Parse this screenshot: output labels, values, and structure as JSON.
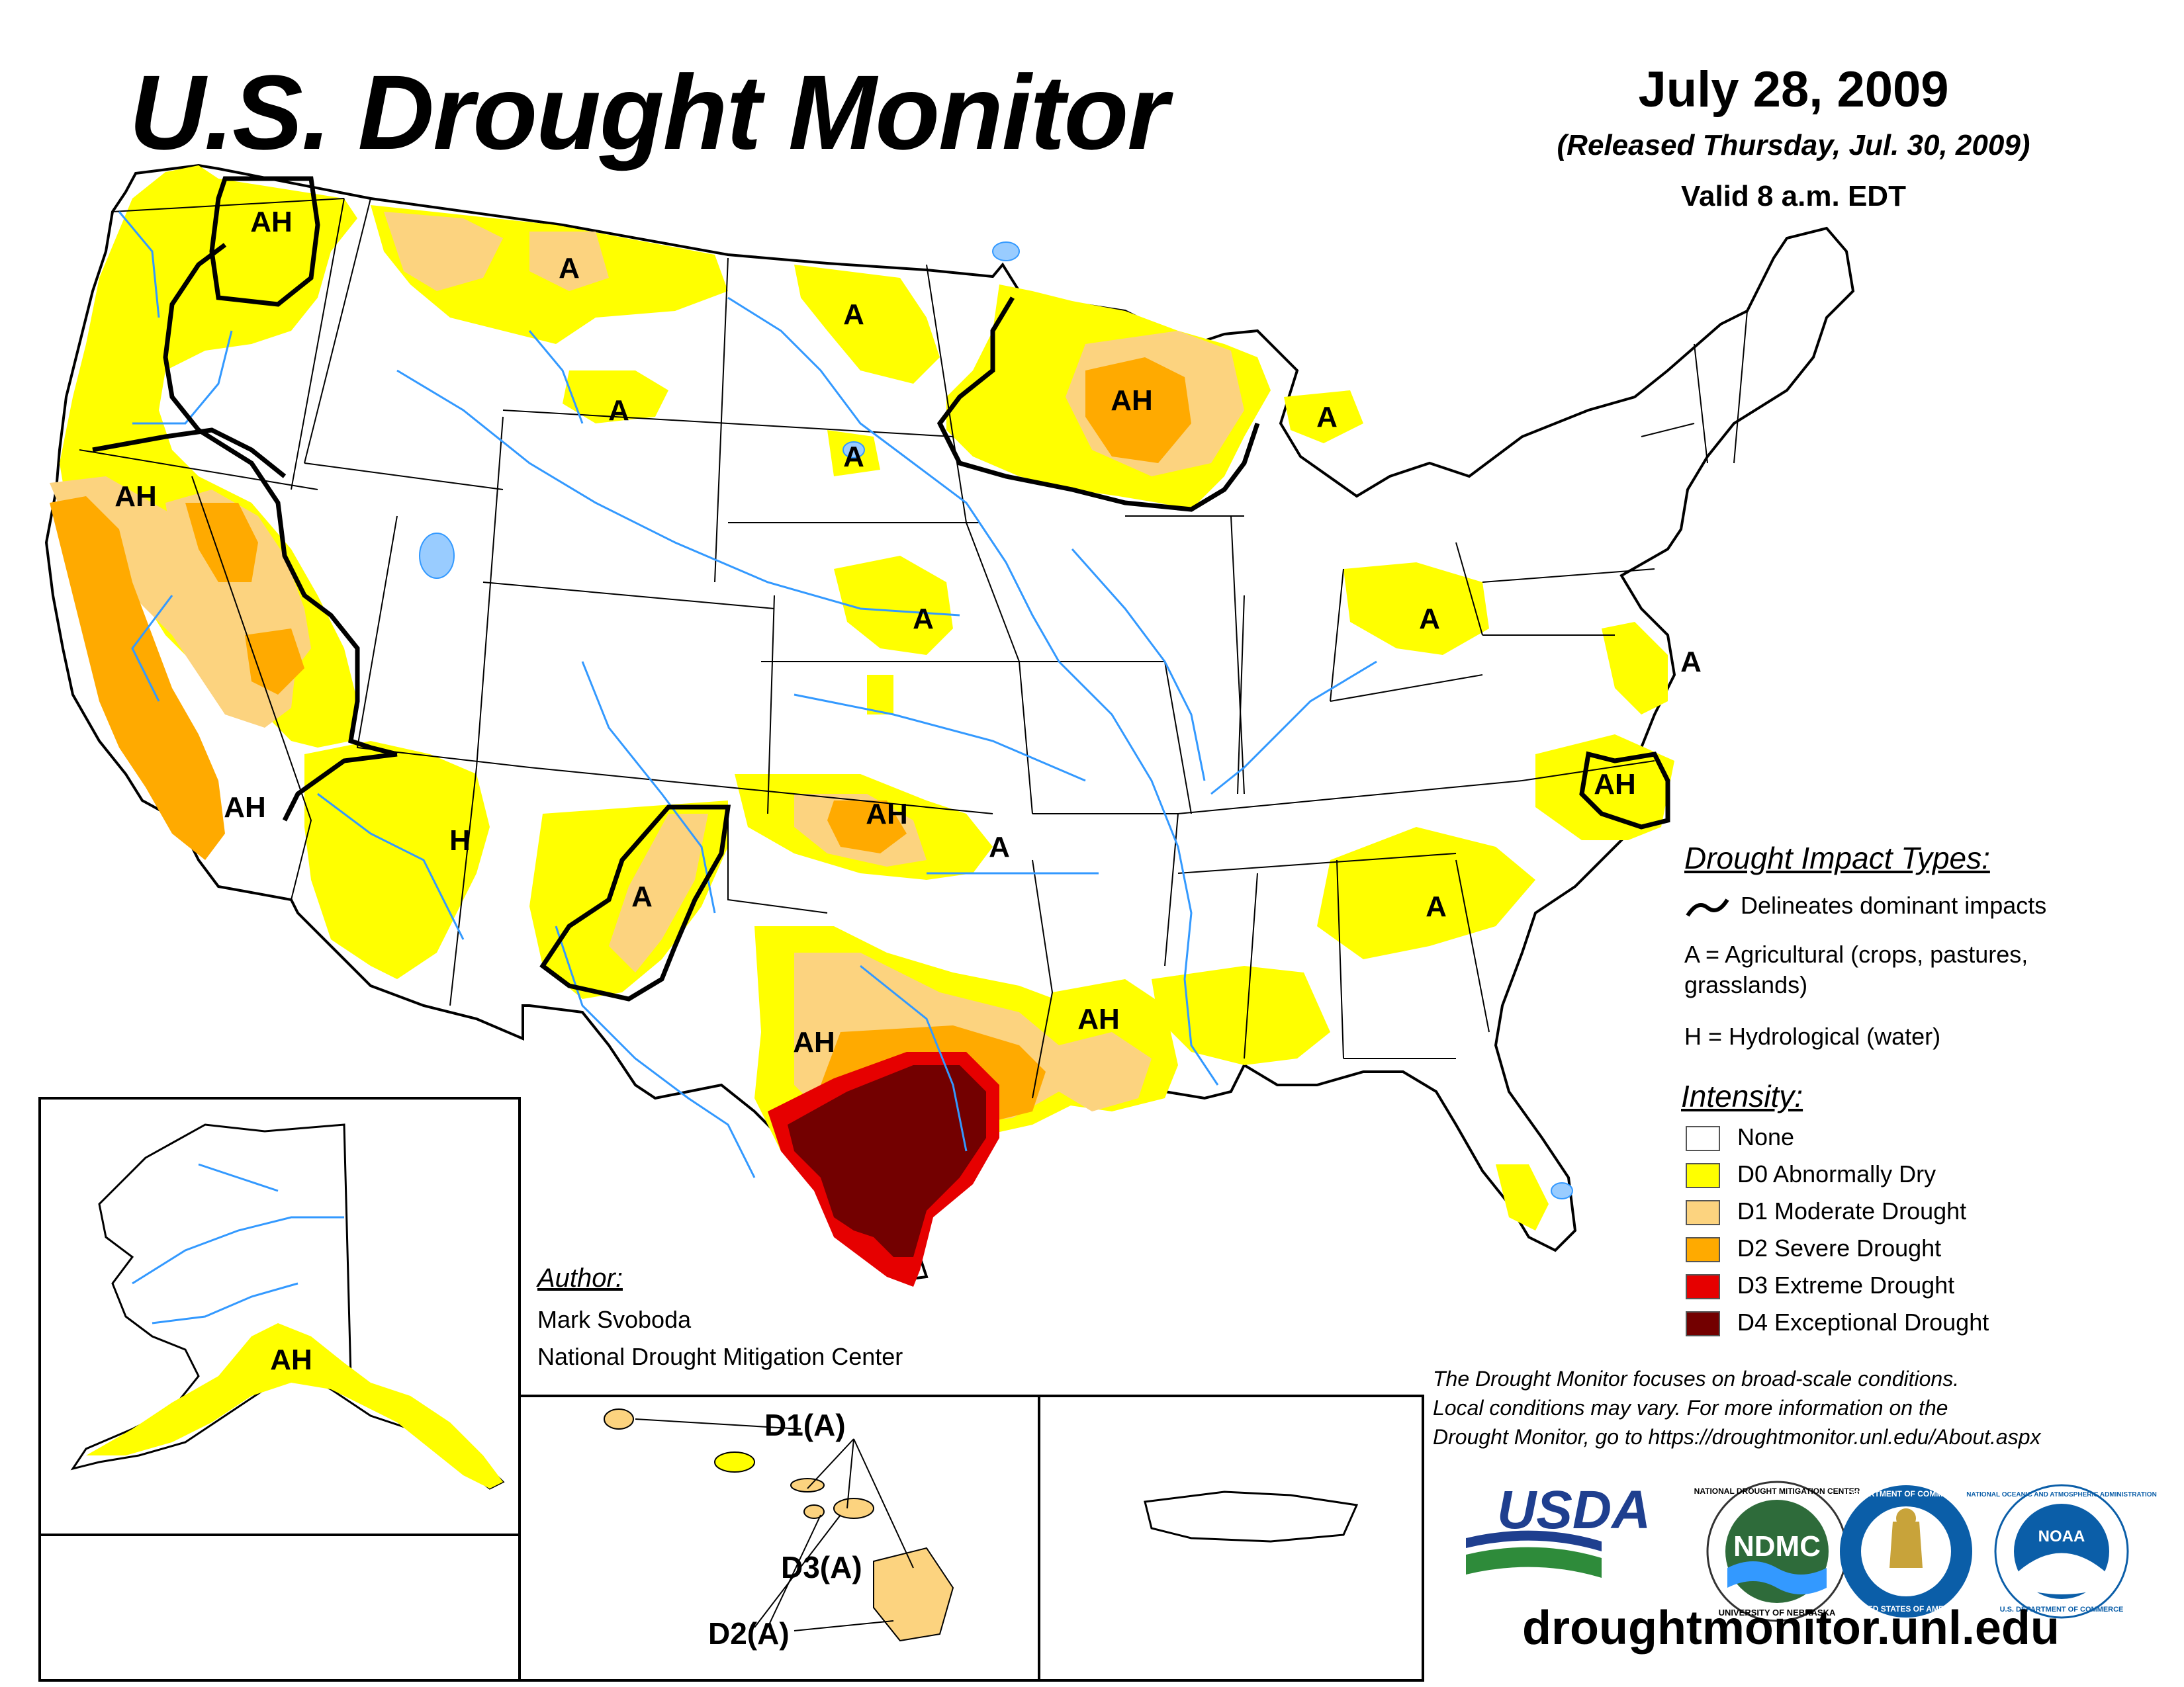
{
  "header": {
    "title": "U.S. Drought Monitor",
    "date": "July 28, 2009",
    "released": "(Released Thursday, Jul. 30, 2009)",
    "valid": "Valid 8 a.m. EDT"
  },
  "map_labels": {
    "ah_nw_wa": "AH",
    "a_mt_north": "A",
    "a_nd": "A",
    "a_mt_east": "A",
    "ah_wi": "AH",
    "a_mi": "A",
    "a_sd": "A",
    "ah_ca_north": "AH",
    "a_ne": "A",
    "a_oh": "A",
    "a_de": "A",
    "ah_nc": "AH",
    "ah_nv": "AH",
    "h_az": "H",
    "a_nm": "A",
    "ah_ok": "AH",
    "a_ok_east": "A",
    "a_ga": "A",
    "ah_la": "AH",
    "ah_tx": "AH",
    "ah_ak": "AH"
  },
  "hawaii_labels": {
    "d1": "D1(A)",
    "d3": "D3(A)",
    "d2": "D2(A)"
  },
  "impact_legend": {
    "title": "Drought Impact Types:",
    "delineates": "Delineates dominant impacts",
    "a_line1": "A = Agricultural (crops, pastures,",
    "a_line2": "grasslands)",
    "h_line": "H = Hydrological (water)"
  },
  "intensity_legend": {
    "title": "Intensity:",
    "items": [
      {
        "label": "None",
        "color": "#ffffff"
      },
      {
        "label": "D0 Abnormally Dry",
        "color": "#ffff00"
      },
      {
        "label": "D1 Moderate Drought",
        "color": "#fcd37f"
      },
      {
        "label": "D2 Severe Drought",
        "color": "#ffaa00"
      },
      {
        "label": "D3 Extreme Drought",
        "color": "#e60000"
      },
      {
        "label": "D4 Exceptional Drought",
        "color": "#730000"
      }
    ]
  },
  "author": {
    "heading": "Author:",
    "name": "Mark Svoboda",
    "org": "National Drought Mitigation Center"
  },
  "disclaimer": {
    "line1": "The Drought Monitor focuses on broad-scale conditions.",
    "line2": "Local conditions may vary. For more information on the",
    "line3": "Drought Monitor, go to https://droughtmonitor.unl.edu/About.aspx"
  },
  "logos": {
    "usda": "USDA",
    "ndmc": "NDMC",
    "ndmc_ring": "NATIONAL DROUGHT MITIGATION CENTER",
    "ndmc_ring_bottom": "UNIVERSITY OF NEBRASKA",
    "commerce_ring": "DEPARTMENT OF COMMERCE",
    "commerce_ring_bottom": "UNITED STATES OF AMERICA",
    "noaa": "NOAA",
    "noaa_ring": "NATIONAL OCEANIC AND ATMOSPHERIC ADMINISTRATION",
    "noaa_ring_bottom": "U.S. DEPARTMENT OF COMMERCE"
  },
  "footer": {
    "url": "droughtmonitor.unl.edu"
  },
  "colors": {
    "d0": "#ffff00",
    "d1": "#fcd37f",
    "d2": "#ffaa00",
    "d3": "#e60000",
    "d4": "#730000",
    "water": "#3399ff",
    "lake": "#99ccff"
  }
}
